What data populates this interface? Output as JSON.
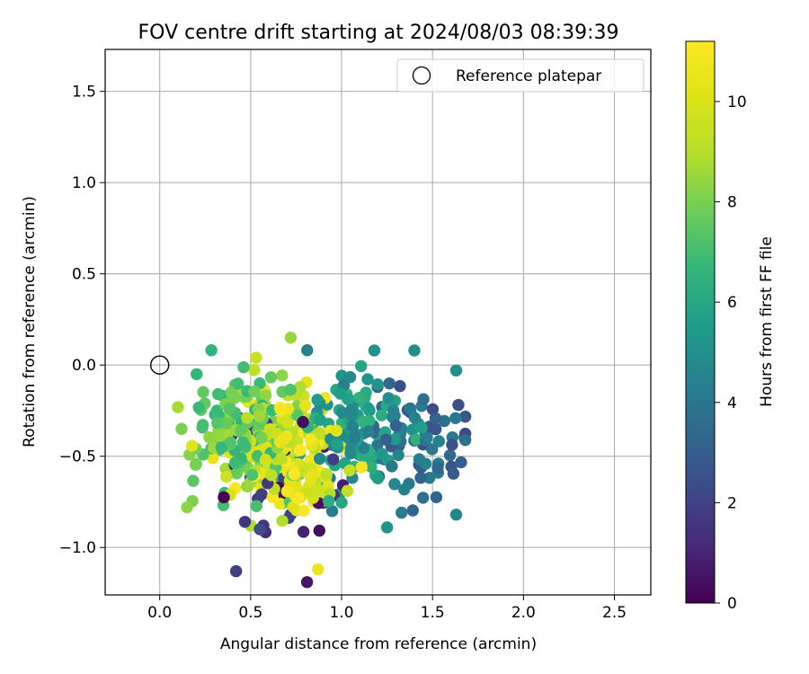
{
  "chart_data": {
    "type": "scatter",
    "title": "FOV centre drift starting at 2024/08/03 08:39:39",
    "xlabel": "Angular distance from reference (arcmin)",
    "ylabel": "Rotation from reference (arcmin)",
    "xlim": [
      -0.3,
      2.7
    ],
    "ylim": [
      -1.26,
      1.73
    ],
    "xticks": [
      0.0,
      0.5,
      1.0,
      1.5,
      2.0,
      2.5
    ],
    "xtick_labels": [
      "0.0",
      "0.5",
      "1.0",
      "1.5",
      "2.0",
      "2.5"
    ],
    "yticks": [
      -1.0,
      -0.5,
      0.0,
      0.5,
      1.0,
      1.5
    ],
    "ytick_labels": [
      "−1.0",
      "−0.5",
      "0.0",
      "0.5",
      "1.0",
      "1.5"
    ],
    "grid": true,
    "legend": {
      "placement": "upper-right",
      "entries": [
        "Reference platepar"
      ]
    },
    "reference_point": {
      "label": "Reference platepar",
      "x": 0.0,
      "y": 0.0
    },
    "colorbar": {
      "label": "Hours from first FF file",
      "min": 0,
      "max": 11.2,
      "ticks": [
        0,
        2,
        4,
        6,
        8,
        10
      ],
      "tick_labels": [
        "0",
        "2",
        "4",
        "6",
        "8",
        "10"
      ],
      "colormap": "viridis"
    },
    "clusters": [
      {
        "h_min": 0,
        "h_max": 2.2,
        "cx": 0.65,
        "cy": -0.62,
        "sx": 0.16,
        "sy": 0.2,
        "n": 28
      },
      {
        "h_min": 2.2,
        "h_max": 4.6,
        "cx": 1.42,
        "cy": -0.42,
        "sx": 0.13,
        "sy": 0.15,
        "n": 70
      },
      {
        "h_min": 4.2,
        "h_max": 6.5,
        "cx": 1.05,
        "cy": -0.36,
        "sx": 0.14,
        "sy": 0.16,
        "n": 110
      },
      {
        "h_min": 6.5,
        "h_max": 8.8,
        "cx": 0.45,
        "cy": -0.38,
        "sx": 0.15,
        "sy": 0.17,
        "n": 150
      },
      {
        "h_min": 8.8,
        "h_max": 11.2,
        "cx": 0.7,
        "cy": -0.48,
        "sx": 0.14,
        "sy": 0.17,
        "n": 170
      }
    ],
    "outliers": [
      {
        "x": 0.42,
        "y": -1.13,
        "h": 1.8
      },
      {
        "x": 0.81,
        "y": -1.19,
        "h": 0.6
      },
      {
        "x": 0.87,
        "y": -1.12,
        "h": 10.6
      },
      {
        "x": 1.63,
        "y": -0.03,
        "h": 5.0
      },
      {
        "x": 1.63,
        "y": -0.82,
        "h": 4.6
      },
      {
        "x": 1.25,
        "y": -0.89,
        "h": 5.2
      },
      {
        "x": 1.4,
        "y": 0.08,
        "h": 4.9
      },
      {
        "x": 1.18,
        "y": 0.08,
        "h": 5.2
      },
      {
        "x": 0.72,
        "y": 0.15,
        "h": 8.5
      },
      {
        "x": 0.15,
        "y": -0.78,
        "h": 8.3
      },
      {
        "x": 0.12,
        "y": -0.35,
        "h": 8.0
      },
      {
        "x": 0.53,
        "y": 0.04,
        "h": 9.5
      },
      {
        "x": 0.57,
        "y": -0.88,
        "h": 1.5
      },
      {
        "x": 0.55,
        "y": -0.9,
        "h": 2.3
      },
      {
        "x": 0.5,
        "y": -0.88,
        "h": 8.9
      },
      {
        "x": 1.11,
        "y": -0.56,
        "h": 10.8
      }
    ]
  }
}
